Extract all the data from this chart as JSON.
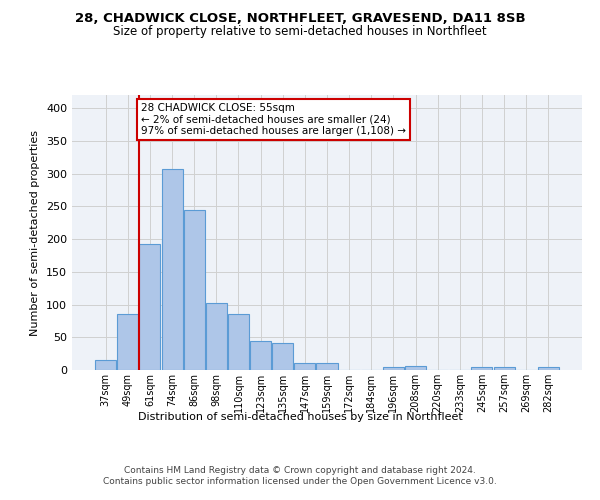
{
  "title1": "28, CHADWICK CLOSE, NORTHFLEET, GRAVESEND, DA11 8SB",
  "title2": "Size of property relative to semi-detached houses in Northfleet",
  "xlabel": "Distribution of semi-detached houses by size in Northfleet",
  "ylabel": "Number of semi-detached properties",
  "bin_labels": [
    "37sqm",
    "49sqm",
    "61sqm",
    "74sqm",
    "86sqm",
    "98sqm",
    "110sqm",
    "123sqm",
    "135sqm",
    "147sqm",
    "159sqm",
    "172sqm",
    "184sqm",
    "196sqm",
    "208sqm",
    "220sqm",
    "233sqm",
    "245sqm",
    "257sqm",
    "269sqm",
    "282sqm"
  ],
  "bar_values": [
    15,
    85,
    193,
    307,
    245,
    103,
    86,
    45,
    41,
    10,
    10,
    0,
    0,
    5,
    6,
    0,
    0,
    5,
    5,
    0,
    5
  ],
  "bar_color": "#aec6e8",
  "bar_edge_color": "#5b9bd5",
  "grid_color": "#d0d0d0",
  "bg_color": "#eef2f8",
  "property_line_x": 1.5,
  "property_line_color": "#cc0000",
  "annotation_text": "28 CHADWICK CLOSE: 55sqm\n← 2% of semi-detached houses are smaller (24)\n97% of semi-detached houses are larger (1,108) →",
  "annotation_box_color": "#cc0000",
  "footnote1": "Contains HM Land Registry data © Crown copyright and database right 2024.",
  "footnote2": "Contains public sector information licensed under the Open Government Licence v3.0.",
  "ylim": [
    0,
    420
  ],
  "yticks": [
    0,
    50,
    100,
    150,
    200,
    250,
    300,
    350,
    400
  ]
}
